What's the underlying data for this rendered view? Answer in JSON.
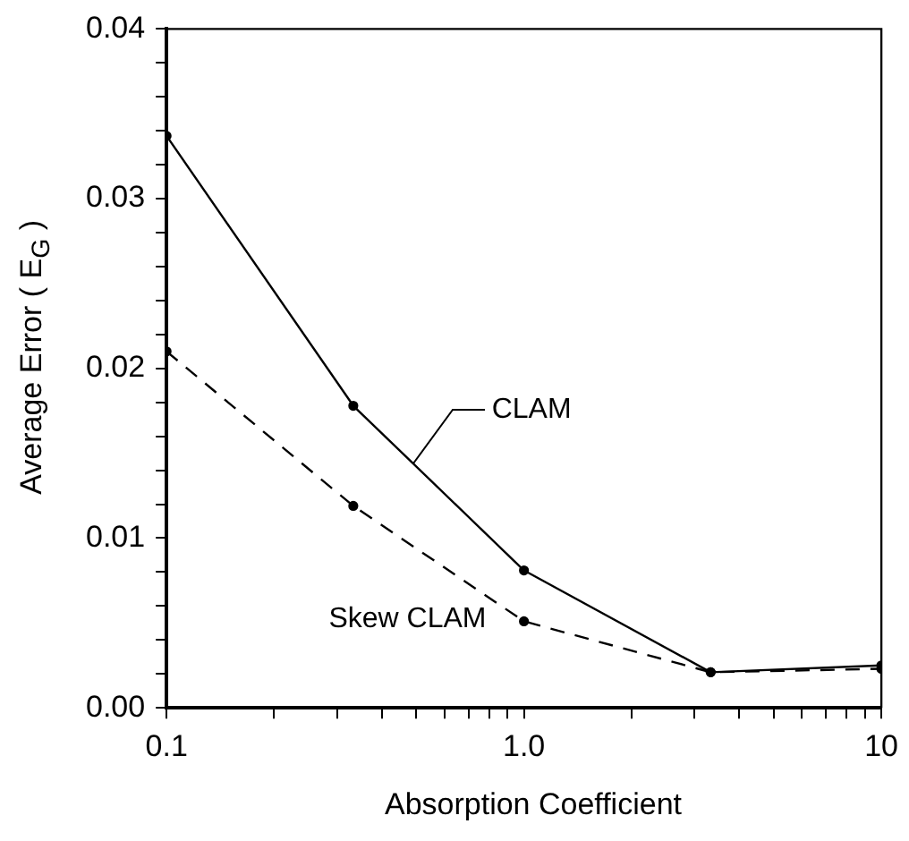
{
  "chart_data": {
    "type": "line",
    "xlabel": "Absorption Coefficient",
    "ylabel": "Average Error ( E$_{G}$ )",
    "log": "x",
    "grid": false,
    "legend": false,
    "marker": "circle",
    "xlim": [
      0.1,
      10
    ],
    "xticks": [
      {
        "value": 0.1,
        "label": "0.1"
      },
      {
        "value": 0.2,
        "label": null
      },
      {
        "value": 0.3,
        "label": null
      },
      {
        "value": 0.4,
        "label": null
      },
      {
        "value": 0.5,
        "label": null
      },
      {
        "value": 0.6,
        "label": null
      },
      {
        "value": 0.7,
        "label": null
      },
      {
        "value": 0.8,
        "label": null
      },
      {
        "value": 0.9,
        "label": null
      },
      {
        "value": 1,
        "label": "1.0"
      },
      {
        "value": 2,
        "label": null
      },
      {
        "value": 3,
        "label": null
      },
      {
        "value": 4,
        "label": null
      },
      {
        "value": 5,
        "label": null
      },
      {
        "value": 6,
        "label": null
      },
      {
        "value": 7,
        "label": null
      },
      {
        "value": 8,
        "label": null
      },
      {
        "value": 9,
        "label": null
      },
      10
    ],
    "ylim": [
      0,
      0.04
    ],
    "yticks": [
      {
        "value": 0,
        "label": "0.00"
      },
      {
        "value": 0.002,
        "label": null
      },
      {
        "value": 0.004,
        "label": null
      },
      {
        "value": 0.006,
        "label": null
      },
      {
        "value": 0.008,
        "label": null
      },
      0.01,
      {
        "value": 0.012,
        "label": null
      },
      {
        "value": 0.014,
        "label": null
      },
      {
        "value": 0.016,
        "label": null
      },
      {
        "value": 0.018,
        "label": null
      },
      0.02,
      {
        "value": 0.022,
        "label": null
      },
      {
        "value": 0.024,
        "label": null
      },
      {
        "value": 0.026,
        "label": null
      },
      {
        "value": 0.028,
        "label": null
      },
      0.03,
      {
        "value": 0.032,
        "label": null
      },
      {
        "value": 0.034,
        "label": null
      },
      {
        "value": 0.036,
        "label": null
      },
      {
        "value": 0.038,
        "label": null
      },
      0.04
    ],
    "x": [
      0.1,
      0.333,
      1,
      3.33,
      10
    ],
    "series": [
      {
        "name": "CLAM",
        "color": "#000000",
        "line_style": "solid",
        "values": [
          0.0337,
          0.0178,
          0.0081,
          0.0021,
          0.0025
        ]
      },
      {
        "name": "Skew CLAM",
        "color": "#000000",
        "line_style": "dashed",
        "values": [
          0.021,
          0.0119,
          0.0051,
          0.0021,
          0.0023
        ]
      }
    ]
  }
}
